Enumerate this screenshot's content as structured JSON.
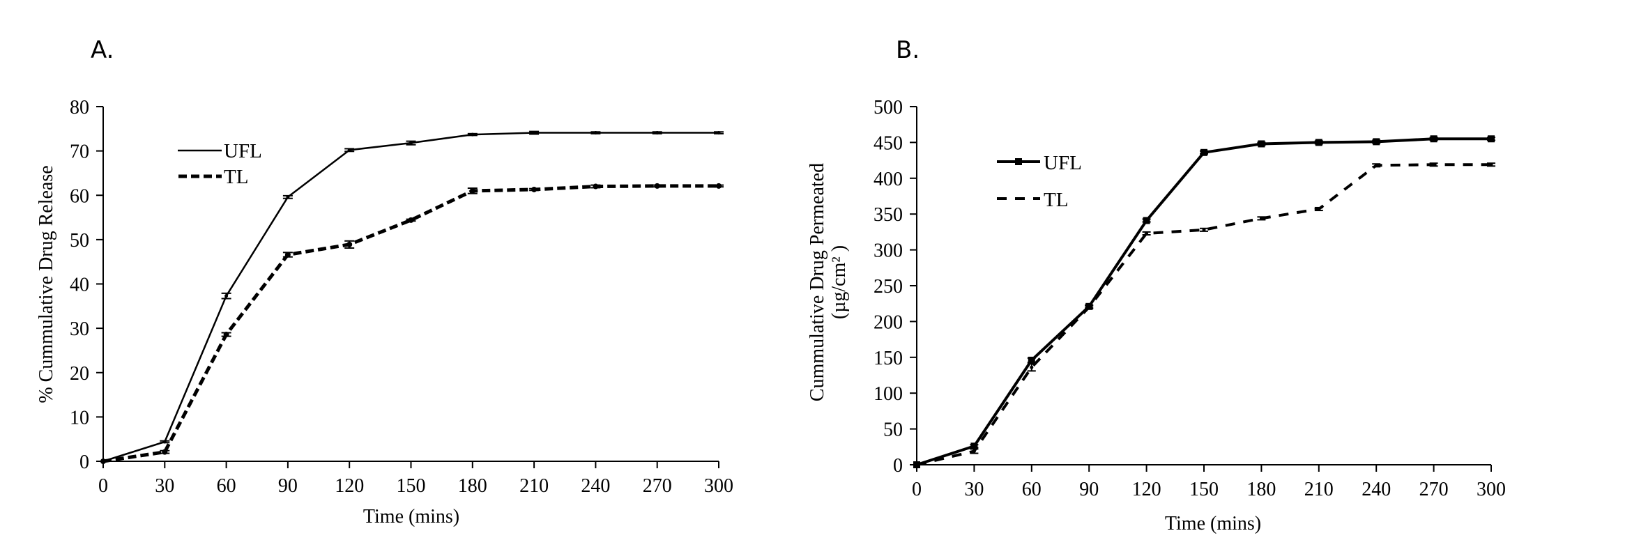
{
  "chart_data": [
    {
      "type": "line",
      "panel_label": "A.",
      "xlabel": "Time (mins)",
      "ylabel": "% Cummulative Drug Release",
      "ylabel_line2": "",
      "x": [
        0,
        30,
        60,
        90,
        120,
        150,
        180,
        210,
        240,
        270,
        300
      ],
      "xlim": [
        0,
        300
      ],
      "ylim": [
        0,
        80
      ],
      "xticks": [
        "0",
        "30",
        "60",
        "90",
        "120",
        "150",
        "180",
        "210",
        "240",
        "270",
        "300"
      ],
      "yticks": [
        "0",
        "10",
        "20",
        "30",
        "40",
        "50",
        "60",
        "70",
        "80"
      ],
      "grid": false,
      "legend_position": "top-left",
      "series": [
        {
          "name": "UFL",
          "style": "solid-thin",
          "values": [
            0,
            4.4,
            37.3,
            59.6,
            70.2,
            71.8,
            73.7,
            74.1,
            74.1,
            74.1,
            74.1
          ],
          "error": [
            0,
            0.2,
            0.6,
            0.3,
            0.3,
            0.4,
            0.2,
            0.3,
            0.2,
            0.2,
            0.2
          ]
        },
        {
          "name": "TL",
          "style": "dashed-thick",
          "values": [
            0,
            2.1,
            28.6,
            46.6,
            48.9,
            54.4,
            61.0,
            61.3,
            62.0,
            62.1,
            62.1
          ],
          "error": [
            0,
            0.3,
            0.4,
            0.5,
            0.8,
            0.2,
            0.6,
            0.2,
            0.3,
            0.2,
            0.2
          ]
        }
      ]
    },
    {
      "type": "line",
      "panel_label": "B.",
      "xlabel": "Time (mins)",
      "ylabel": "Cummulative Drug Permeated",
      "ylabel_line2": "(µg/cm² )",
      "x": [
        0,
        30,
        60,
        90,
        120,
        150,
        180,
        210,
        240,
        270,
        300
      ],
      "xlim": [
        0,
        300
      ],
      "ylim": [
        0,
        500
      ],
      "xticks": [
        "0",
        "30",
        "60",
        "90",
        "120",
        "150",
        "180",
        "210",
        "240",
        "270",
        "300"
      ],
      "yticks": [
        "0",
        "50",
        "100",
        "150",
        "200",
        "250",
        "300",
        "350",
        "400",
        "450",
        "500"
      ],
      "grid": false,
      "legend_position": "top-left",
      "series": [
        {
          "name": "UFL",
          "style": "solid-thick-square-markers",
          "values": [
            0,
            26,
            146,
            221,
            341,
            436,
            448,
            450,
            451,
            455,
            455
          ],
          "error": [
            0,
            2,
            3,
            2,
            2,
            2,
            2,
            2,
            2,
            2,
            2
          ]
        },
        {
          "name": "TL",
          "style": "dashed",
          "values": [
            0,
            19,
            136,
            220,
            323,
            328,
            344,
            357,
            418,
            419,
            419
          ],
          "error": [
            0,
            3,
            5,
            2,
            2,
            2,
            2,
            2,
            2,
            2,
            2
          ]
        }
      ]
    }
  ]
}
